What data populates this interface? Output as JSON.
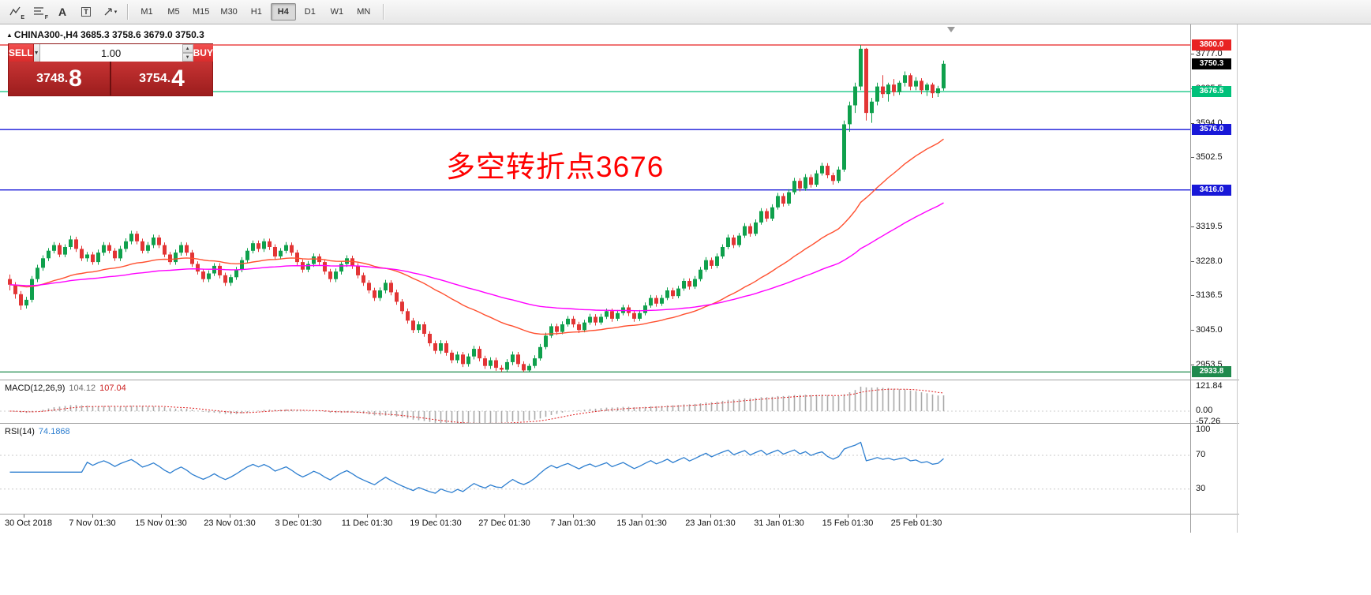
{
  "toolbar": {
    "tools": [
      {
        "name": "equidistant-channel-tool",
        "glyph": "E"
      },
      {
        "name": "fibonacci-tool",
        "glyph": "F"
      },
      {
        "name": "text-tool",
        "glyph": "A"
      },
      {
        "name": "label-tool",
        "glyph": "T"
      },
      {
        "name": "arrows-tool",
        "glyph": "▾"
      }
    ],
    "timeframes": [
      "M1",
      "M5",
      "M15",
      "M30",
      "H1",
      "H4",
      "D1",
      "W1",
      "MN"
    ],
    "active_timeframe": "H4"
  },
  "icons": {
    "symbol_marker": "▲",
    "volume_dropdown_caret": "▼",
    "spinner_up": "▲",
    "spinner_down": "▼",
    "arrow_tool_caret": "▾"
  },
  "chart": {
    "header": "CHINA300-,H4  3685.3 3758.6 3679.0 3750.3",
    "symbol": "CHINA300-",
    "timeframe": "H4",
    "annotation": {
      "text": "多空转折点3676",
      "color": "#ff0000"
    },
    "price_axis_ticks": [
      "3777.0",
      "3685.5",
      "3594.0",
      "3502.5",
      "3319.5",
      "3228.0",
      "3136.5",
      "3045.0",
      "2953.5"
    ],
    "current_price_badge": {
      "price": 3750.3,
      "label": "3750.3",
      "color": "#000000"
    }
  },
  "trade_panel": {
    "sell_label": "SELL",
    "buy_label": "BUY",
    "volume": "1.00",
    "sell_price_main": "3748.",
    "sell_price_big": "8",
    "buy_price_main": "3754.",
    "buy_price_big": "4"
  },
  "macd_panel": {
    "name": "MACD(12,26,9)",
    "value_main": "104.12",
    "value_signal": "107.04",
    "axis": [
      "121.84",
      "0.00",
      "-57.26"
    ]
  },
  "rsi_panel": {
    "name": "RSI(14)",
    "value": "74.1868",
    "axis": [
      "100",
      "70",
      "30"
    ]
  },
  "chart_data": {
    "type": "candlestick",
    "symbol": "CHINA300-",
    "timeframe": "H4",
    "current_ohlc": {
      "open": 3685.3,
      "high": 3758.6,
      "low": 3679.0,
      "close": 3750.3
    },
    "price_axis": {
      "tick_top": 3777.0,
      "tick_step": 91.5,
      "tick_bottom": 2953.5
    },
    "hlines": [
      {
        "price": 3800.0,
        "label": "3800.0",
        "color": "#e82222"
      },
      {
        "price": 3676.5,
        "label": "3676.5",
        "color": "#00c17a"
      },
      {
        "price": 3576.0,
        "label": "3576.0",
        "color": "#1818d8"
      },
      {
        "price": 3416.0,
        "label": "3416.0",
        "color": "#1818d8"
      },
      {
        "price": 2933.8,
        "label": "2933.8",
        "color": "#1f8a4d"
      }
    ],
    "colors": {
      "candle_up": "#0fa04c",
      "candle_down": "#e23535",
      "ma_fast": "#ff5030",
      "ma_slow": "#ff00ff",
      "macd_hist": "#aaaaaa",
      "macd_signal": "#e02020",
      "rsi_line": "#2e7fd0",
      "annotation": "#ff0000"
    },
    "indicators": {
      "macd_params": [
        12,
        26,
        9
      ],
      "rsi_params": [
        14
      ],
      "macd_values": [
        104.12,
        107.04
      ],
      "rsi_value": 74.1868
    },
    "x_labels": [
      "30 Oct 2018",
      "7 Nov 01:30",
      "15 Nov 01:30",
      "23 Nov 01:30",
      "3 Dec 01:30",
      "11 Dec 01:30",
      "19 Dec 01:30",
      "27 Dec 01:30",
      "7 Jan 01:30",
      "15 Jan 01:30",
      "23 Jan 01:30",
      "31 Jan 01:30",
      "15 Feb 01:30",
      "25 Feb 01:30"
    ],
    "candles": [
      [
        3180,
        3192,
        3150,
        3165
      ],
      [
        3165,
        3172,
        3128,
        3140
      ],
      [
        3140,
        3148,
        3098,
        3110
      ],
      [
        3110,
        3133,
        3102,
        3125
      ],
      [
        3125,
        3188,
        3118,
        3180
      ],
      [
        3180,
        3218,
        3172,
        3210
      ],
      [
        3210,
        3243,
        3202,
        3235
      ],
      [
        3235,
        3262,
        3228,
        3255
      ],
      [
        3255,
        3278,
        3248,
        3270
      ],
      [
        3270,
        3276,
        3238,
        3245
      ],
      [
        3245,
        3272,
        3238,
        3265
      ],
      [
        3265,
        3295,
        3258,
        3285
      ],
      [
        3285,
        3292,
        3252,
        3260
      ],
      [
        3260,
        3268,
        3228,
        3235
      ],
      [
        3235,
        3252,
        3226,
        3245
      ],
      [
        3245,
        3252,
        3218,
        3225
      ],
      [
        3225,
        3258,
        3218,
        3250
      ],
      [
        3250,
        3278,
        3242,
        3270
      ],
      [
        3270,
        3277,
        3248,
        3255
      ],
      [
        3255,
        3262,
        3228,
        3235
      ],
      [
        3235,
        3268,
        3228,
        3260
      ],
      [
        3260,
        3288,
        3252,
        3280
      ],
      [
        3280,
        3308,
        3272,
        3300
      ],
      [
        3300,
        3307,
        3272,
        3280
      ],
      [
        3280,
        3287,
        3248,
        3255
      ],
      [
        3255,
        3278,
        3248,
        3270
      ],
      [
        3270,
        3298,
        3262,
        3290
      ],
      [
        3290,
        3297,
        3262,
        3270
      ],
      [
        3270,
        3277,
        3238,
        3245
      ],
      [
        3245,
        3252,
        3218,
        3225
      ],
      [
        3225,
        3258,
        3218,
        3250
      ],
      [
        3250,
        3278,
        3242,
        3270
      ],
      [
        3270,
        3277,
        3242,
        3250
      ],
      [
        3250,
        3257,
        3212,
        3220
      ],
      [
        3220,
        3227,
        3192,
        3200
      ],
      [
        3200,
        3207,
        3172,
        3180
      ],
      [
        3180,
        3203,
        3172,
        3195
      ],
      [
        3195,
        3222,
        3188,
        3215
      ],
      [
        3215,
        3222,
        3182,
        3190
      ],
      [
        3190,
        3197,
        3162,
        3170
      ],
      [
        3170,
        3192,
        3162,
        3185
      ],
      [
        3185,
        3212,
        3178,
        3205
      ],
      [
        3205,
        3238,
        3198,
        3230
      ],
      [
        3230,
        3262,
        3222,
        3255
      ],
      [
        3255,
        3282,
        3248,
        3275
      ],
      [
        3275,
        3282,
        3252,
        3260
      ],
      [
        3260,
        3287,
        3252,
        3280
      ],
      [
        3280,
        3287,
        3257,
        3265
      ],
      [
        3265,
        3272,
        3232,
        3240
      ],
      [
        3240,
        3262,
        3232,
        3255
      ],
      [
        3255,
        3278,
        3248,
        3270
      ],
      [
        3270,
        3277,
        3242,
        3250
      ],
      [
        3250,
        3257,
        3217,
        3225
      ],
      [
        3225,
        3232,
        3197,
        3205
      ],
      [
        3205,
        3228,
        3198,
        3220
      ],
      [
        3220,
        3248,
        3212,
        3240
      ],
      [
        3240,
        3247,
        3217,
        3225
      ],
      [
        3225,
        3232,
        3192,
        3200
      ],
      [
        3200,
        3207,
        3172,
        3180
      ],
      [
        3180,
        3208,
        3172,
        3200
      ],
      [
        3200,
        3228,
        3192,
        3220
      ],
      [
        3220,
        3243,
        3212,
        3235
      ],
      [
        3235,
        3242,
        3207,
        3215
      ],
      [
        3215,
        3222,
        3182,
        3190
      ],
      [
        3190,
        3197,
        3162,
        3170
      ],
      [
        3170,
        3177,
        3142,
        3150
      ],
      [
        3150,
        3157,
        3122,
        3130
      ],
      [
        3130,
        3158,
        3122,
        3150
      ],
      [
        3150,
        3178,
        3142,
        3170
      ],
      [
        3170,
        3177,
        3137,
        3145
      ],
      [
        3145,
        3152,
        3112,
        3120
      ],
      [
        3120,
        3127,
        3087,
        3095
      ],
      [
        3095,
        3102,
        3062,
        3070
      ],
      [
        3070,
        3077,
        3037,
        3045
      ],
      [
        3045,
        3068,
        3037,
        3060
      ],
      [
        3060,
        3067,
        3027,
        3035
      ],
      [
        3035,
        3042,
        3002,
        3010
      ],
      [
        3010,
        3017,
        2982,
        2990
      ],
      [
        2990,
        3018,
        2982,
        3010
      ],
      [
        3010,
        3017,
        2977,
        2985
      ],
      [
        2985,
        2992,
        2957,
        2965
      ],
      [
        2965,
        2988,
        2957,
        2980
      ],
      [
        2980,
        2987,
        2947,
        2955
      ],
      [
        2955,
        2983,
        2948,
        2975
      ],
      [
        2975,
        3003,
        2967,
        2995
      ],
      [
        2995,
        3002,
        2962,
        2970
      ],
      [
        2970,
        2977,
        2942,
        2950
      ],
      [
        2950,
        2973,
        2942,
        2965
      ],
      [
        2965,
        2972,
        2937,
        2945
      ],
      [
        2945,
        2952,
        2934,
        2940
      ],
      [
        2940,
        2968,
        2934,
        2960
      ],
      [
        2960,
        2988,
        2952,
        2980
      ],
      [
        2980,
        2987,
        2947,
        2955
      ],
      [
        2955,
        2962,
        2934,
        2938
      ],
      [
        2938,
        2956,
        2934,
        2950
      ],
      [
        2950,
        2978,
        2944,
        2970
      ],
      [
        2970,
        3008,
        2964,
        3000
      ],
      [
        3000,
        3038,
        2994,
        3030
      ],
      [
        3030,
        3062,
        3024,
        3055
      ],
      [
        3055,
        3062,
        3032,
        3040
      ],
      [
        3040,
        3068,
        3034,
        3060
      ],
      [
        3060,
        3082,
        3054,
        3075
      ],
      [
        3075,
        3082,
        3052,
        3060
      ],
      [
        3060,
        3067,
        3037,
        3045
      ],
      [
        3045,
        3072,
        3039,
        3065
      ],
      [
        3065,
        3088,
        3059,
        3080
      ],
      [
        3080,
        3087,
        3057,
        3065
      ],
      [
        3065,
        3088,
        3059,
        3080
      ],
      [
        3080,
        3102,
        3074,
        3095
      ],
      [
        3095,
        3102,
        3067,
        3075
      ],
      [
        3075,
        3098,
        3069,
        3090
      ],
      [
        3090,
        3112,
        3084,
        3105
      ],
      [
        3105,
        3112,
        3082,
        3090
      ],
      [
        3090,
        3097,
        3067,
        3075
      ],
      [
        3075,
        3098,
        3069,
        3090
      ],
      [
        3090,
        3118,
        3084,
        3110
      ],
      [
        3110,
        3138,
        3104,
        3130
      ],
      [
        3130,
        3137,
        3107,
        3115
      ],
      [
        3115,
        3138,
        3109,
        3130
      ],
      [
        3130,
        3158,
        3124,
        3150
      ],
      [
        3150,
        3157,
        3127,
        3135
      ],
      [
        3135,
        3162,
        3129,
        3155
      ],
      [
        3155,
        3182,
        3149,
        3175
      ],
      [
        3175,
        3182,
        3152,
        3160
      ],
      [
        3160,
        3188,
        3154,
        3180
      ],
      [
        3180,
        3212,
        3174,
        3205
      ],
      [
        3205,
        3238,
        3199,
        3230
      ],
      [
        3230,
        3237,
        3207,
        3215
      ],
      [
        3215,
        3248,
        3209,
        3240
      ],
      [
        3240,
        3272,
        3234,
        3265
      ],
      [
        3265,
        3298,
        3259,
        3290
      ],
      [
        3290,
        3297,
        3262,
        3270
      ],
      [
        3270,
        3302,
        3264,
        3295
      ],
      [
        3295,
        3328,
        3289,
        3320
      ],
      [
        3320,
        3327,
        3292,
        3300
      ],
      [
        3300,
        3338,
        3294,
        3330
      ],
      [
        3330,
        3368,
        3324,
        3360
      ],
      [
        3360,
        3367,
        3332,
        3340
      ],
      [
        3340,
        3378,
        3334,
        3370
      ],
      [
        3370,
        3408,
        3364,
        3400
      ],
      [
        3400,
        3407,
        3372,
        3380
      ],
      [
        3380,
        3418,
        3374,
        3410
      ],
      [
        3410,
        3448,
        3404,
        3440
      ],
      [
        3440,
        3447,
        3412,
        3420
      ],
      [
        3420,
        3458,
        3414,
        3450
      ],
      [
        3450,
        3457,
        3422,
        3430
      ],
      [
        3430,
        3468,
        3424,
        3460
      ],
      [
        3460,
        3488,
        3454,
        3480
      ],
      [
        3480,
        3487,
        3447,
        3455
      ],
      [
        3455,
        3462,
        3430,
        3440
      ],
      [
        3440,
        3478,
        3434,
        3470
      ],
      [
        3470,
        3600,
        3464,
        3590
      ],
      [
        3590,
        3650,
        3570,
        3640
      ],
      [
        3640,
        3700,
        3620,
        3690
      ],
      [
        3690,
        3800,
        3680,
        3790
      ],
      [
        3790,
        3792,
        3600,
        3620
      ],
      [
        3620,
        3660,
        3594,
        3650
      ],
      [
        3650,
        3700,
        3640,
        3690
      ],
      [
        3690,
        3720,
        3660,
        3670
      ],
      [
        3670,
        3700,
        3650,
        3695
      ],
      [
        3695,
        3710,
        3665,
        3675
      ],
      [
        3675,
        3705,
        3668,
        3700
      ],
      [
        3700,
        3730,
        3690,
        3720
      ],
      [
        3720,
        3725,
        3680,
        3690
      ],
      [
        3690,
        3715,
        3680,
        3705
      ],
      [
        3705,
        3712,
        3670,
        3680
      ],
      [
        3680,
        3700,
        3665,
        3695
      ],
      [
        3695,
        3700,
        3660,
        3672
      ],
      [
        3672,
        3692,
        3662,
        3685
      ],
      [
        3685.3,
        3758.6,
        3679.0,
        3750.3
      ]
    ]
  }
}
